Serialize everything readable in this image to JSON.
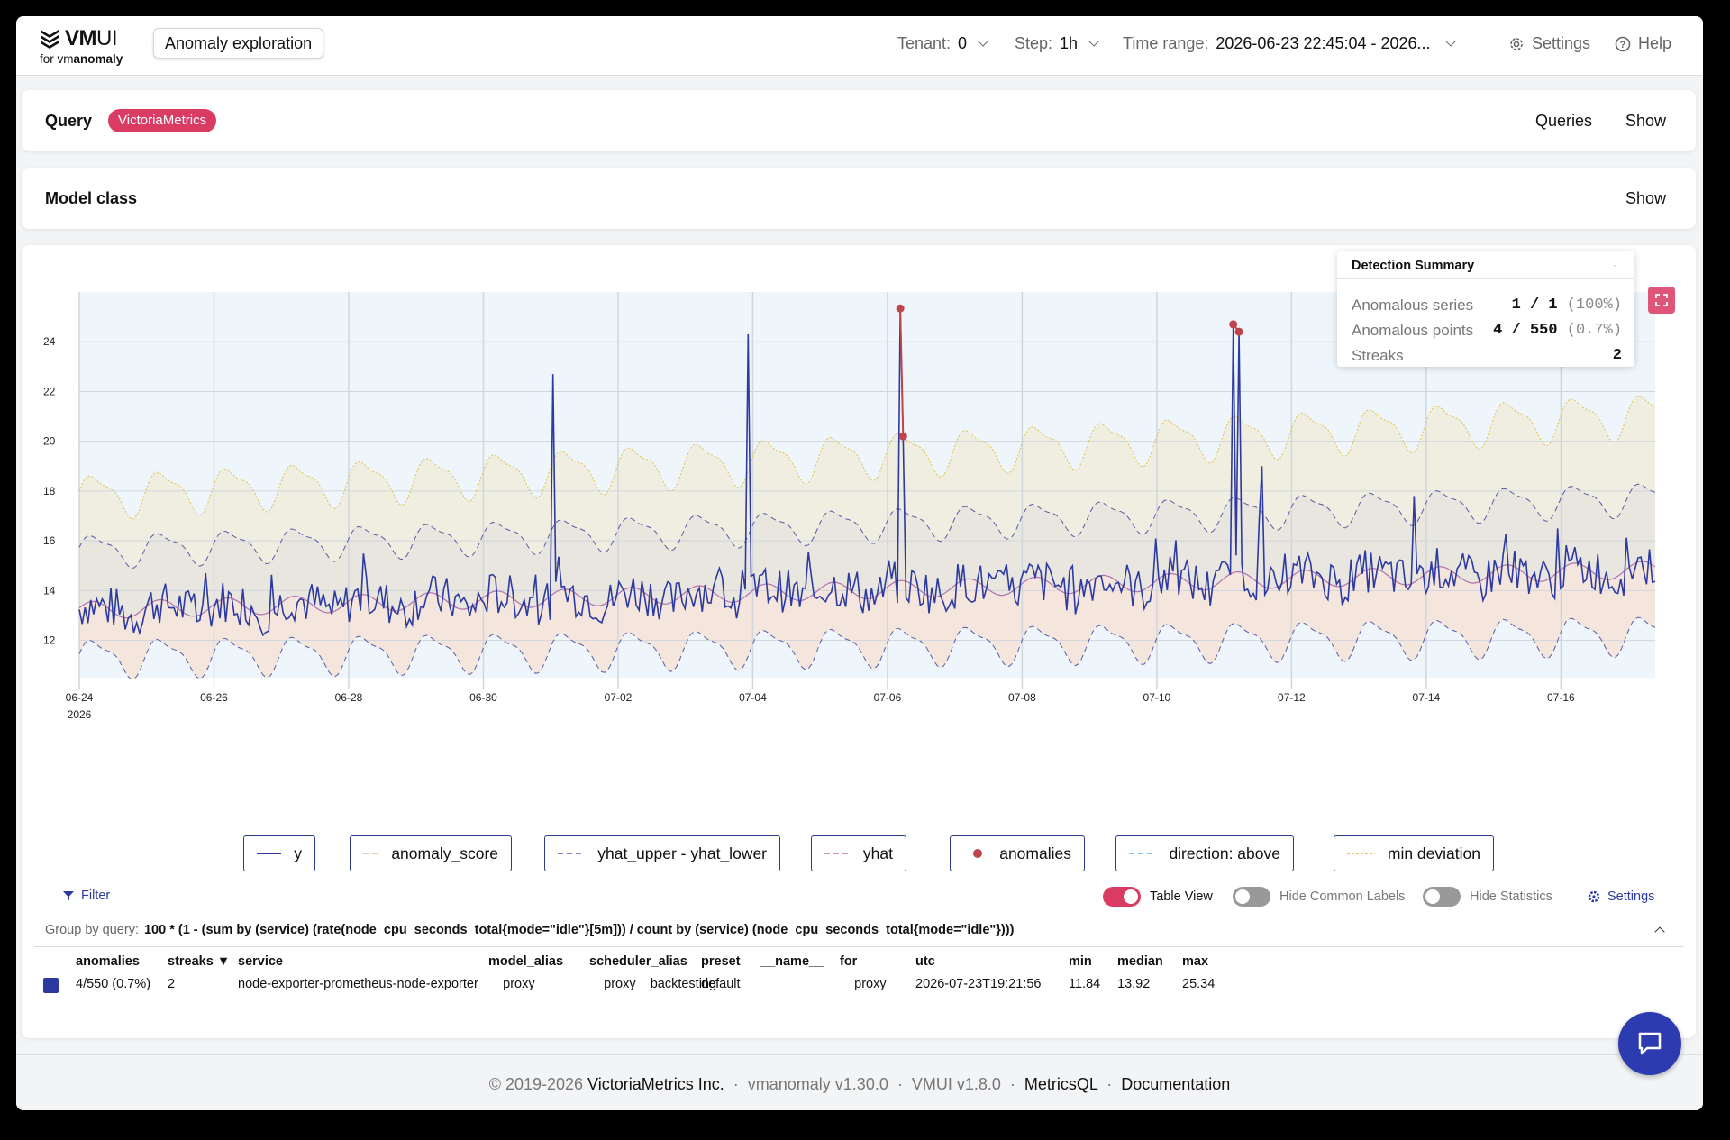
{
  "header": {
    "logo_main": "VM",
    "logo_main_thin": "UI",
    "logo_sub_prefix": "for vm",
    "logo_sub_bold": "anomaly",
    "page_title": "Anomaly exploration",
    "tenant_label": "Tenant:",
    "tenant_value": "0",
    "step_label": "Step:",
    "step_value": "1h",
    "time_range_label": "Time range:",
    "time_range_value": "2026-06-23 22:45:04 - 2026...",
    "settings_label": "Settings",
    "help_label": "Help"
  },
  "query_card": {
    "title": "Query",
    "badge": "VictoriaMetrics",
    "queries_label": "Queries",
    "show_label": "Show"
  },
  "model_card": {
    "title": "Model class",
    "show_label": "Show"
  },
  "chart_data": {
    "type": "line",
    "x": [
      "06-24",
      "06-26",
      "06-28",
      "06-30",
      "07-02",
      "07-04",
      "07-06",
      "07-08",
      "07-10",
      "07-12",
      "07-14",
      "07-16"
    ],
    "x_year": "2026",
    "yticks": [
      "12",
      "14",
      "16",
      "18",
      "20",
      "22",
      "24"
    ],
    "ylim": [
      10.5,
      26
    ],
    "series": [
      {
        "name": "y",
        "color": "#2d3aa0"
      },
      {
        "name": "anomaly_score",
        "color": "#e8b48a"
      },
      {
        "name": "yhat_upper - yhat_lower",
        "color": "#5a5aa8"
      },
      {
        "name": "yhat",
        "color": "#b070b0"
      },
      {
        "name": "anomalies",
        "color": "#c0454a"
      },
      {
        "name": "direction: above",
        "color": "#5aaee0"
      },
      {
        "name": "min deviation",
        "color": "#e0b040"
      }
    ],
    "anomaly_points": [
      {
        "x": "07-06",
        "y": 25.34
      },
      {
        "x": "07-06",
        "y": 20.2
      },
      {
        "x": "07-11",
        "y": 24.7
      },
      {
        "x": "07-11",
        "y": 24.4
      }
    ],
    "grid": true
  },
  "summary": {
    "title": "Detection Summary",
    "rows": [
      {
        "label": "Anomalous series",
        "value": "1 / 1",
        "pct": "(100%)"
      },
      {
        "label": "Anomalous points",
        "value": "4 / 550",
        "pct": "(0.7%)"
      },
      {
        "label": "Streaks",
        "value": "2",
        "pct": ""
      }
    ]
  },
  "legend": {
    "items": [
      "y",
      "anomaly_score",
      "yhat_upper - yhat_lower",
      "yhat",
      "anomalies",
      "direction: above",
      "min deviation"
    ]
  },
  "controls": {
    "filter_label": "Filter",
    "table_view_label": "Table View",
    "table_view_on": true,
    "hide_common_labels": "Hide Common Labels",
    "hide_statistics": "Hide Statistics",
    "settings_label": "Settings"
  },
  "group_by": {
    "label": "Group by query:",
    "query": "100 * (1 - (sum by (service) (rate(node_cpu_seconds_total{mode=\"idle\"}[5m])) / count by (service) (node_cpu_seconds_total{mode=\"idle\"})))"
  },
  "table": {
    "headers": [
      "anomalies",
      "streaks ▼",
      "service",
      "model_alias",
      "scheduler_alias",
      "preset",
      "__name__",
      "for",
      "utc",
      "min",
      "median",
      "max"
    ],
    "row": [
      "4/550 (0.7%)",
      "2",
      "node-exporter-prometheus-node-exporter",
      "__proxy__",
      "__proxy__backtesting",
      "default",
      "",
      "__proxy__",
      "2026-07-23T19:21:56",
      "11.84",
      "13.92",
      "25.34"
    ]
  },
  "footer": {
    "copyright": "© 2019-2026",
    "company": "VictoriaMetrics Inc.",
    "vmanomaly": "vmanomaly v1.30.0",
    "vmui": "VMUI v1.8.0",
    "metricsql": "MetricsQL",
    "docs": "Documentation"
  }
}
